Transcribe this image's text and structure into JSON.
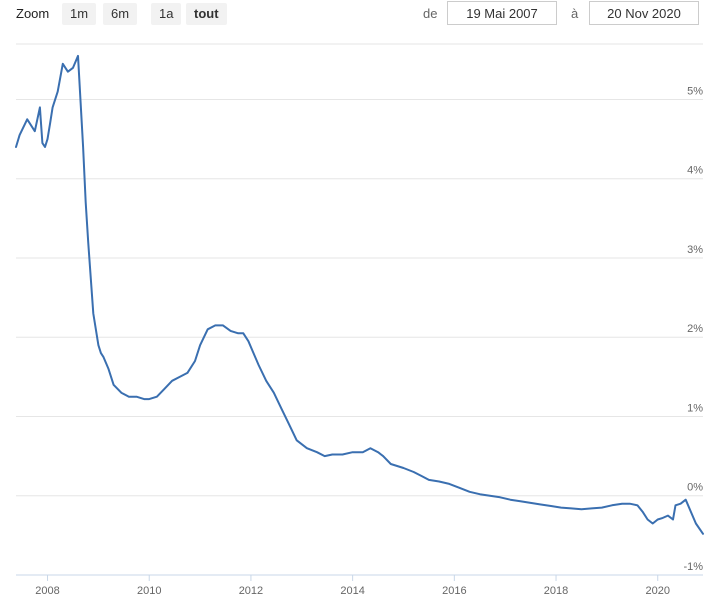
{
  "toolbar": {
    "zoom_label": "Zoom",
    "zoom_buttons": [
      "1m",
      "6m",
      "1a",
      "tout"
    ],
    "active_zoom": "tout",
    "from_label": "de",
    "from_value": "19 Mai 2007",
    "to_label": "à",
    "to_value": "20 Nov 2020"
  },
  "colors": {
    "line": "#3a6fb0",
    "grid": "#e6e6e6",
    "axis": "#c8d7e8"
  },
  "chart_data": {
    "type": "line",
    "title": "",
    "xlabel": "",
    "ylabel": "",
    "grid": "horizontal",
    "xlim": [
      2007.38,
      2020.89
    ],
    "ylim": [
      -1,
      5.7
    ],
    "x_ticks": [
      "2008",
      "2010",
      "2012",
      "2014",
      "2016",
      "2018",
      "2020"
    ],
    "y_ticks": [
      "5%",
      "4%",
      "3%",
      "2%",
      "1%",
      "0%",
      "-1%"
    ],
    "series": [
      {
        "name": "",
        "x": [
          2007.38,
          2007.45,
          2007.6,
          2007.75,
          2007.85,
          2007.9,
          2007.95,
          2008.0,
          2008.05,
          2008.1,
          2008.2,
          2008.3,
          2008.4,
          2008.5,
          2008.6,
          2008.7,
          2008.75,
          2008.8,
          2008.9,
          2009.0,
          2009.05,
          2009.1,
          2009.2,
          2009.3,
          2009.45,
          2009.6,
          2009.75,
          2009.9,
          2010.0,
          2010.15,
          2010.3,
          2010.45,
          2010.6,
          2010.75,
          2010.9,
          2011.0,
          2011.15,
          2011.3,
          2011.45,
          2011.6,
          2011.75,
          2011.85,
          2011.95,
          2012.05,
          2012.15,
          2012.3,
          2012.45,
          2012.6,
          2012.75,
          2012.9,
          2013.1,
          2013.3,
          2013.45,
          2013.6,
          2013.8,
          2014.0,
          2014.2,
          2014.35,
          2014.5,
          2014.6,
          2014.75,
          2015.0,
          2015.2,
          2015.35,
          2015.5,
          2015.7,
          2015.9,
          2016.1,
          2016.3,
          2016.5,
          2016.7,
          2016.9,
          2017.1,
          2017.3,
          2017.5,
          2017.7,
          2017.9,
          2018.1,
          2018.3,
          2018.5,
          2018.7,
          2018.9,
          2019.1,
          2019.3,
          2019.45,
          2019.6,
          2019.7,
          2019.8,
          2019.9,
          2020.0,
          2020.1,
          2020.2,
          2020.3,
          2020.35,
          2020.45,
          2020.55,
          2020.65,
          2020.75,
          2020.89
        ],
        "values": [
          4.4,
          4.55,
          4.75,
          4.6,
          4.9,
          4.45,
          4.4,
          4.5,
          4.7,
          4.9,
          5.1,
          5.45,
          5.35,
          5.4,
          5.55,
          4.4,
          3.7,
          3.2,
          2.3,
          1.9,
          1.8,
          1.75,
          1.6,
          1.4,
          1.3,
          1.25,
          1.25,
          1.22,
          1.22,
          1.25,
          1.35,
          1.45,
          1.5,
          1.55,
          1.7,
          1.9,
          2.1,
          2.15,
          2.15,
          2.08,
          2.05,
          2.05,
          1.95,
          1.8,
          1.65,
          1.45,
          1.3,
          1.1,
          0.9,
          0.7,
          0.6,
          0.55,
          0.5,
          0.52,
          0.52,
          0.55,
          0.55,
          0.6,
          0.55,
          0.5,
          0.4,
          0.35,
          0.3,
          0.25,
          0.2,
          0.18,
          0.15,
          0.1,
          0.05,
          0.02,
          0.0,
          -0.02,
          -0.05,
          -0.07,
          -0.09,
          -0.11,
          -0.13,
          -0.15,
          -0.16,
          -0.17,
          -0.16,
          -0.15,
          -0.12,
          -0.1,
          -0.1,
          -0.12,
          -0.2,
          -0.3,
          -0.35,
          -0.3,
          -0.28,
          -0.25,
          -0.3,
          -0.12,
          -0.1,
          -0.05,
          -0.2,
          -0.35,
          -0.48
        ]
      }
    ]
  }
}
